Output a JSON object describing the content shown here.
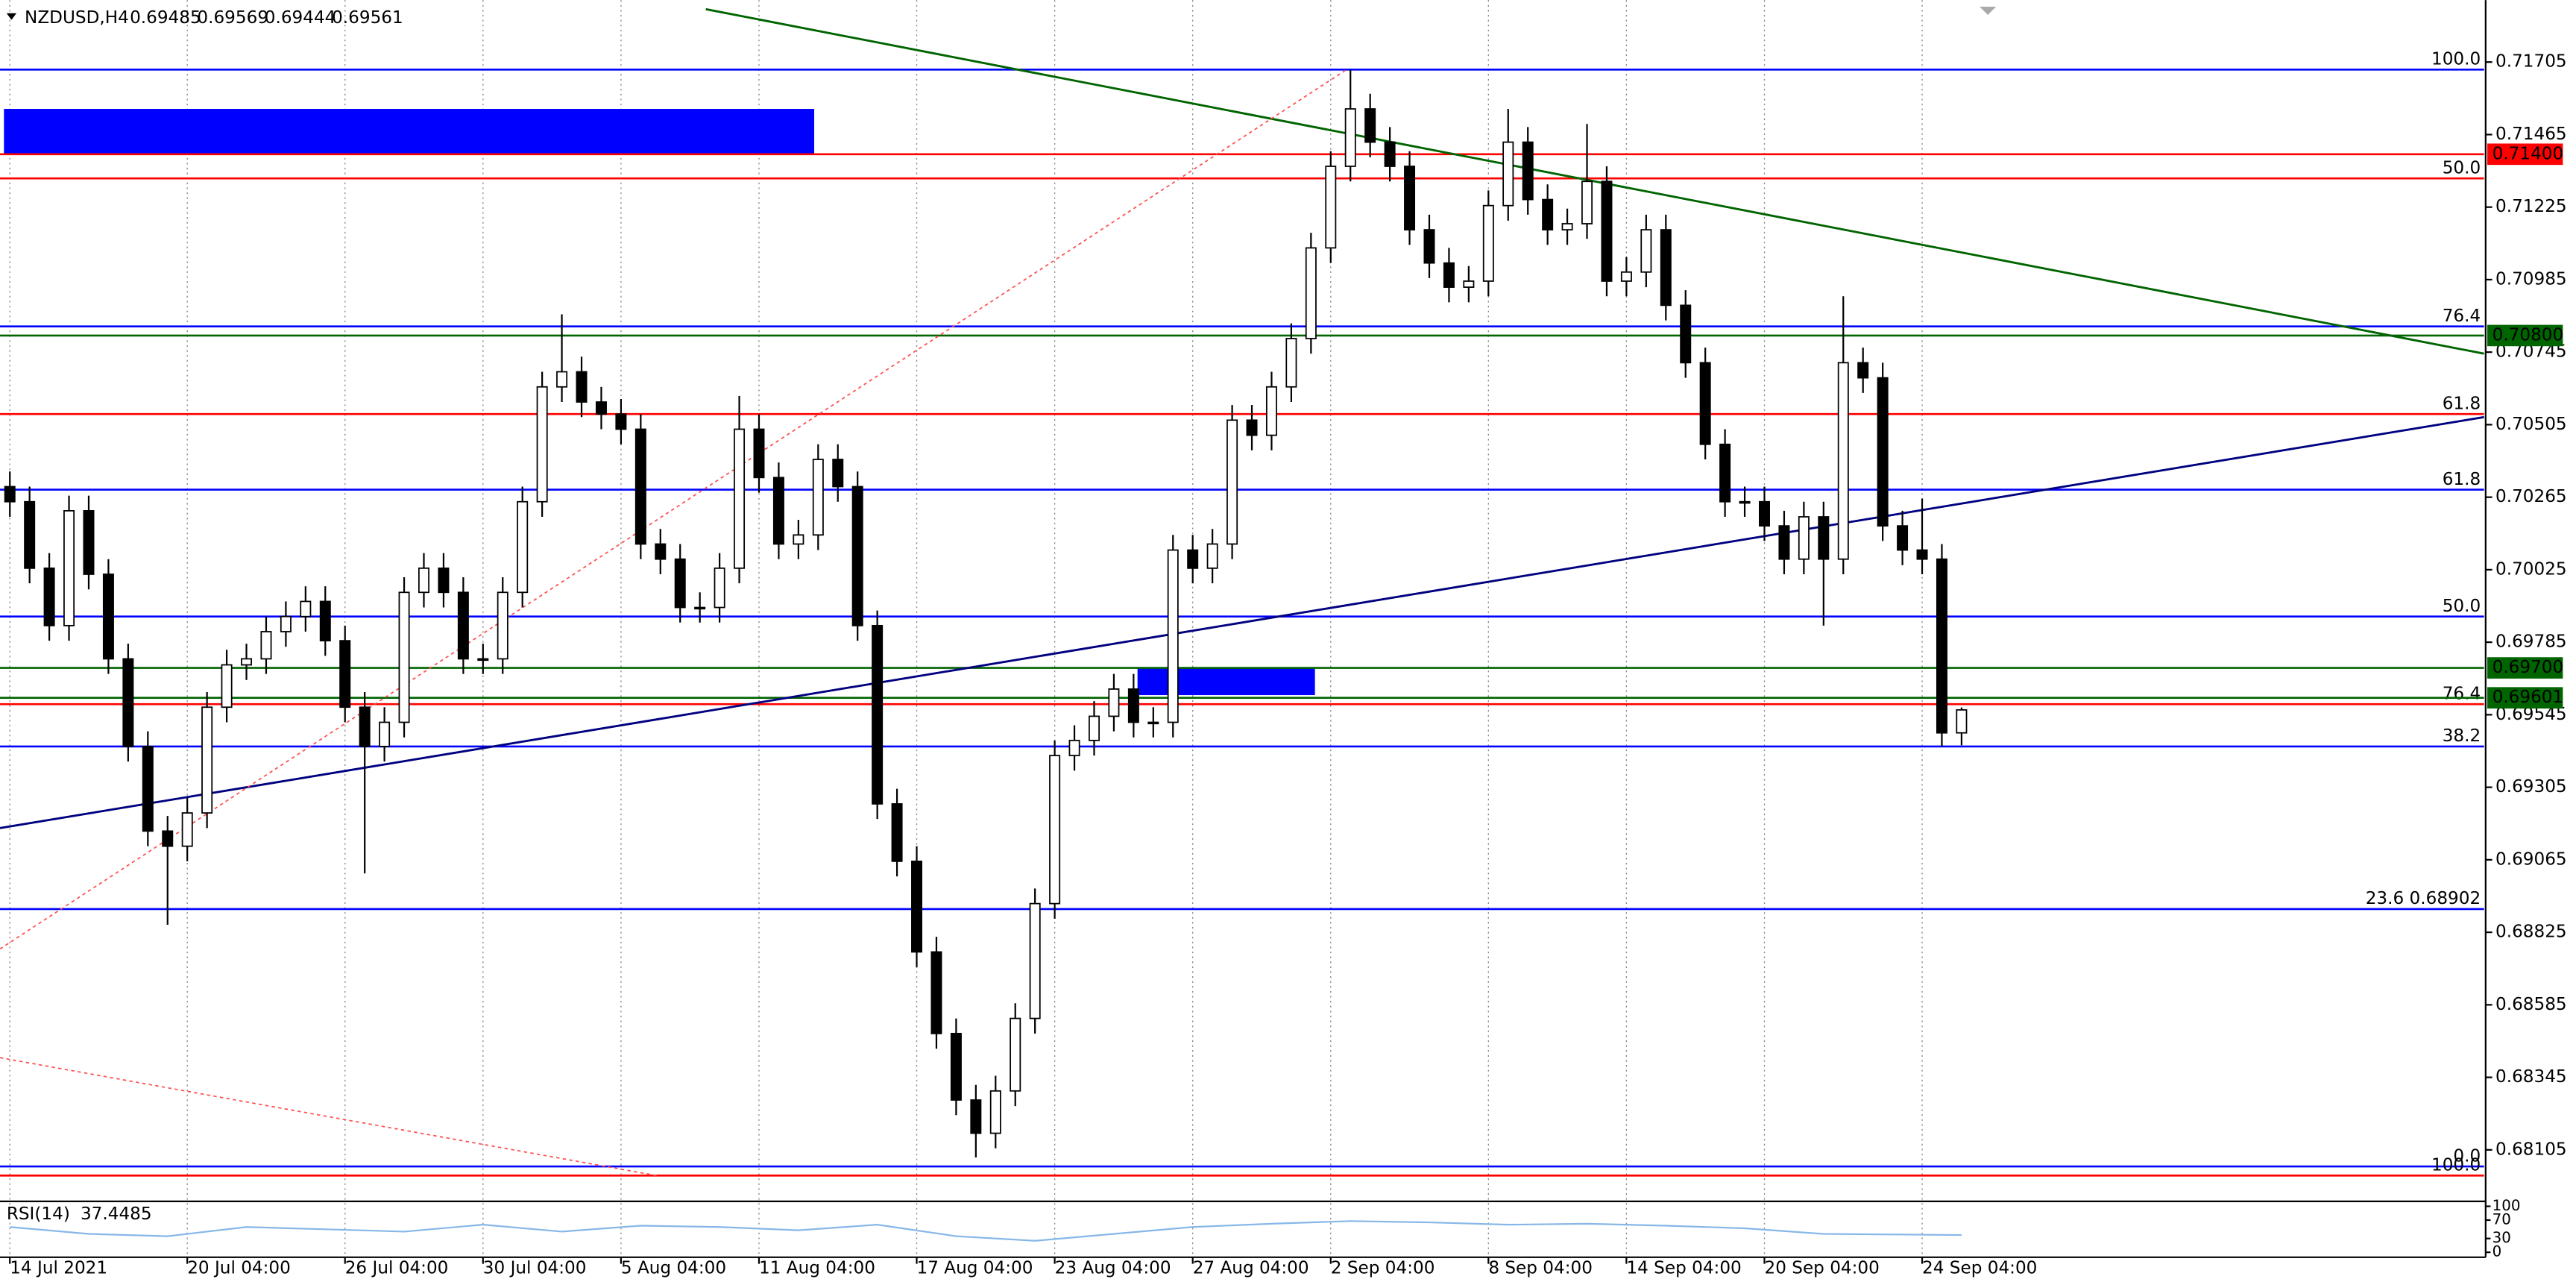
{
  "chart_data": {
    "type": "candlestick",
    "title": "NZDUSD,H4",
    "xlim": [
      -0.5,
      125.5
    ],
    "ylim": [
      0.6794,
      0.7191
    ],
    "grid": "vertical",
    "bull_color": "#ffffff",
    "bear_color": "#000000",
    "xticks": [
      {
        "value": 0,
        "label": "14 Jul 2021"
      },
      {
        "value": 9,
        "label": "20 Jul 04:00"
      },
      {
        "value": 17,
        "label": "26 Jul 04:00"
      },
      {
        "value": 24,
        "label": "30 Jul 04:00"
      },
      {
        "value": 31,
        "label": "5 Aug 04:00"
      },
      {
        "value": 38,
        "label": "11 Aug 04:00"
      },
      {
        "value": 46,
        "label": "17 Aug 04:00"
      },
      {
        "value": 53,
        "label": "23 Aug 04:00"
      },
      {
        "value": 60,
        "label": "27 Aug 04:00"
      },
      {
        "value": 67,
        "label": "2 Sep 04:00"
      },
      {
        "value": 75,
        "label": "8 Sep 04:00"
      },
      {
        "value": 82,
        "label": "14 Sep 04:00"
      },
      {
        "value": 89,
        "label": "20 Sep 04:00"
      },
      {
        "value": 97,
        "label": "24 Sep 04:00"
      }
    ],
    "yticks": [
      0.71705,
      0.71465,
      0.71225,
      0.70985,
      0.70745,
      0.70505,
      0.70265,
      0.70025,
      0.69785,
      0.69545,
      0.69305,
      0.69065,
      0.68825,
      0.68585,
      0.68345,
      0.68105
    ],
    "open": [
      0.703,
      0.7025,
      0.7003,
      0.6984,
      0.7022,
      0.7001,
      0.6973,
      0.6944,
      0.6916,
      0.6911,
      0.6922,
      0.6957,
      0.6971,
      0.6973,
      0.6982,
      0.6987,
      0.6992,
      0.6979,
      0.6957,
      0.6944,
      0.6952,
      0.6995,
      0.7003,
      0.6995,
      0.6973,
      0.6973,
      0.6995,
      0.7025,
      0.7063,
      0.7068,
      0.7058,
      0.7054,
      0.7049,
      0.7011,
      0.7006,
      0.699,
      0.699,
      0.7003,
      0.7049,
      0.7033,
      0.7011,
      0.7014,
      0.7039,
      0.703,
      0.6984,
      0.6925,
      0.6906,
      0.6876,
      0.6849,
      0.6827,
      0.6816,
      0.683,
      0.6854,
      0.6892,
      0.6941,
      0.6946,
      0.6954,
      0.6963,
      0.6952,
      0.6952,
      0.7009,
      0.7003,
      0.7011,
      0.7052,
      0.7047,
      0.7063,
      0.7079,
      0.7109,
      0.7136,
      0.7155,
      0.7144,
      0.7136,
      0.7115,
      0.7104,
      0.7096,
      0.7098,
      0.7123,
      0.7144,
      0.7125,
      0.7115,
      0.7117,
      0.7131,
      0.7098,
      0.7101,
      0.7115,
      0.709,
      0.7071,
      0.7044,
      0.7025,
      0.7025,
      0.7017,
      0.7006,
      0.702,
      0.7006,
      0.7071,
      0.7066,
      0.7017,
      0.7009,
      0.7006,
      0.69485
    ],
    "high": [
      0.7035,
      0.703,
      0.7008,
      0.7027,
      0.7027,
      0.7006,
      0.6978,
      0.6949,
      0.6921,
      0.6927,
      0.6962,
      0.6976,
      0.6978,
      0.6987,
      0.6992,
      0.6997,
      0.6997,
      0.6984,
      0.6962,
      0.6957,
      0.7,
      0.7008,
      0.7008,
      0.7,
      0.6978,
      0.7,
      0.703,
      0.7068,
      0.7087,
      0.7073,
      0.7063,
      0.7059,
      0.7054,
      0.7016,
      0.7011,
      0.6995,
      0.7008,
      0.706,
      0.7054,
      0.7038,
      0.7019,
      0.7044,
      0.7044,
      0.7035,
      0.6989,
      0.693,
      0.6911,
      0.6881,
      0.6854,
      0.6832,
      0.6835,
      0.6859,
      0.6897,
      0.6946,
      0.6951,
      0.6959,
      0.6968,
      0.6968,
      0.6957,
      0.7014,
      0.7014,
      0.7016,
      0.7057,
      0.7057,
      0.7068,
      0.7084,
      0.7114,
      0.7141,
      0.7168,
      0.716,
      0.7149,
      0.7141,
      0.712,
      0.7109,
      0.7103,
      0.7128,
      0.7155,
      0.7149,
      0.713,
      0.7122,
      0.715,
      0.7136,
      0.7106,
      0.712,
      0.712,
      0.7095,
      0.7076,
      0.7049,
      0.703,
      0.703,
      0.7022,
      0.7025,
      0.7025,
      0.7093,
      0.7076,
      0.7071,
      0.7022,
      0.7026,
      0.7011,
      0.69569
    ],
    "low": [
      0.702,
      0.6998,
      0.6979,
      0.6979,
      0.6996,
      0.6968,
      0.6939,
      0.6911,
      0.6885,
      0.6906,
      0.6917,
      0.6952,
      0.6966,
      0.6968,
      0.6977,
      0.6982,
      0.6974,
      0.6952,
      0.6902,
      0.6939,
      0.6947,
      0.699,
      0.699,
      0.6968,
      0.6968,
      0.6968,
      0.699,
      0.702,
      0.7058,
      0.7053,
      0.7049,
      0.7044,
      0.7006,
      0.7001,
      0.6985,
      0.6985,
      0.6985,
      0.6998,
      0.7028,
      0.7006,
      0.7006,
      0.7009,
      0.7025,
      0.6979,
      0.692,
      0.6901,
      0.6871,
      0.6844,
      0.6822,
      0.6808,
      0.6811,
      0.6825,
      0.6849,
      0.6887,
      0.6936,
      0.6941,
      0.6949,
      0.6947,
      0.6947,
      0.6947,
      0.6998,
      0.6998,
      0.7006,
      0.7042,
      0.7042,
      0.7058,
      0.7074,
      0.7104,
      0.7131,
      0.7139,
      0.7131,
      0.711,
      0.7099,
      0.7091,
      0.7091,
      0.7093,
      0.7118,
      0.712,
      0.711,
      0.711,
      0.7112,
      0.7093,
      0.7093,
      0.7096,
      0.7085,
      0.7066,
      0.7039,
      0.702,
      0.702,
      0.7012,
      0.7001,
      0.7001,
      0.6984,
      0.7001,
      0.7061,
      0.7012,
      0.7004,
      0.7001,
      0.6944,
      0.69444
    ],
    "close": [
      0.7025,
      0.7003,
      0.6984,
      0.7022,
      0.7001,
      0.6973,
      0.6944,
      0.6916,
      0.6911,
      0.6922,
      0.6957,
      0.6971,
      0.6973,
      0.6982,
      0.6987,
      0.6992,
      0.6979,
      0.6957,
      0.6944,
      0.6952,
      0.6995,
      0.7003,
      0.6995,
      0.6973,
      0.6973,
      0.6995,
      0.7025,
      0.7063,
      0.7068,
      0.7058,
      0.7054,
      0.7049,
      0.7011,
      0.7006,
      0.699,
      0.699,
      0.7003,
      0.7049,
      0.7033,
      0.7011,
      0.7014,
      0.7039,
      0.703,
      0.6984,
      0.6925,
      0.6906,
      0.6876,
      0.6849,
      0.6827,
      0.6816,
      0.683,
      0.6854,
      0.6892,
      0.6941,
      0.6946,
      0.6954,
      0.6963,
      0.6952,
      0.6952,
      0.7009,
      0.7003,
      0.7011,
      0.7052,
      0.7047,
      0.7063,
      0.7079,
      0.7109,
      0.7136,
      0.7155,
      0.7144,
      0.7136,
      0.7115,
      0.7104,
      0.7096,
      0.7098,
      0.7123,
      0.7144,
      0.7125,
      0.7115,
      0.7117,
      0.7131,
      0.7098,
      0.7101,
      0.7115,
      0.709,
      0.7071,
      0.7044,
      0.7025,
      0.7025,
      0.7017,
      0.7006,
      0.702,
      0.7006,
      0.7071,
      0.7066,
      0.7017,
      0.7009,
      0.7006,
      0.69485,
      0.69561
    ],
    "levels": [
      {
        "value": 0.7168,
        "label": "100.0",
        "color": "#0000ff",
        "style": "fib"
      },
      {
        "value": 0.714,
        "label": "0.71400",
        "color": "#ff0000",
        "style": "tag"
      },
      {
        "value": 0.7132,
        "label": "50.0",
        "color": "#ff0000",
        "style": "fib"
      },
      {
        "value": 0.7083,
        "label": "76.4",
        "color": "#0000ff",
        "style": "fib"
      },
      {
        "value": 0.708,
        "label": "0.70800",
        "color": "#006400",
        "style": "tag"
      },
      {
        "value": 0.7054,
        "label": "61.8",
        "color": "#ff0000",
        "style": "fib"
      },
      {
        "value": 0.7029,
        "label": "61.8",
        "color": "#0000ff",
        "style": "fib"
      },
      {
        "value": 0.6987,
        "label": "50.0",
        "color": "#0000ff",
        "style": "fib"
      },
      {
        "value": 0.697,
        "label": "0.69700",
        "color": "#006400",
        "style": "tag"
      },
      {
        "value": 0.6958,
        "label": "76.4",
        "color": "#ff0000",
        "style": "fib"
      },
      {
        "value": 0.69601,
        "label": "0.69601",
        "color": "#006400",
        "style": "tag"
      },
      {
        "value": 0.6944,
        "label": "38.2",
        "color": "#0000ff",
        "style": "fib"
      },
      {
        "value": 0.68902,
        "label": "23.6 0.68902",
        "color": "#0000ff",
        "style": "fib"
      },
      {
        "value": 0.6805,
        "label": "0.0",
        "color": "#0000ff",
        "style": "fib"
      },
      {
        "value": 0.6802,
        "label": "100.0",
        "color": "#ff0000",
        "style": "fib"
      }
    ],
    "zones": [
      {
        "x": [
          -0.3,
          40.8
        ],
        "y": [
          0.714,
          0.7155
        ],
        "color": "#0000ff"
      },
      {
        "x": [
          57.2,
          66.2
        ],
        "y": [
          0.6961,
          0.697
        ],
        "color": "#0000ff"
      }
    ],
    "trendlines": [
      {
        "x": [
          35.3,
          125.5
        ],
        "y": [
          0.7188,
          0.7074
        ],
        "color": "#006400",
        "dash": false
      },
      {
        "x": [
          -0.5,
          125.5
        ],
        "y": [
          0.6917,
          0.7053
        ],
        "color": "#000080",
        "dash": false
      },
      {
        "x": [
          -0.5,
          67.8
        ],
        "y": [
          0.6877,
          0.7168
        ],
        "color": "#ff5050",
        "dash": true
      },
      {
        "x": [
          -0.5,
          32.8
        ],
        "y": [
          0.6841,
          0.6802
        ],
        "color": "#ff5050",
        "dash": true
      }
    ],
    "rsi": {
      "name": "RSI(14)",
      "color": "#87b7e8",
      "ylim": [
        0,
        100
      ],
      "yticks": [
        0,
        30,
        70,
        100
      ],
      "x": [
        0,
        4,
        8,
        12,
        16,
        20,
        24,
        28,
        32,
        36,
        40,
        44,
        48,
        52,
        56,
        60,
        64,
        68,
        72,
        76,
        80,
        84,
        88,
        92,
        99
      ],
      "values": [
        55,
        40,
        35,
        55,
        50,
        45,
        60,
        45,
        58,
        55,
        48,
        60,
        35,
        25,
        40,
        55,
        62,
        68,
        65,
        60,
        62,
        58,
        52,
        40,
        37.4485
      ]
    }
  }
}
